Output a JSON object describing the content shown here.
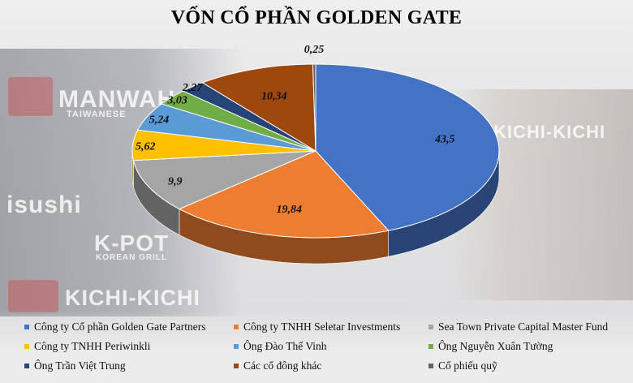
{
  "chart_data": {
    "type": "pie",
    "title": "VỐN CỔ PHẦN GOLDEN GATE",
    "legend_position": "bottom",
    "slices": [
      {
        "label": "Công ty Cổ phần Golden Gate Partners",
        "value": 43.5,
        "display": "43,5",
        "color": "#4472c4"
      },
      {
        "label": "Công ty TNHH Seletar Investments",
        "value": 19.84,
        "display": "19,84",
        "color": "#ed7d31"
      },
      {
        "label": "Sea Town Private Capital Master Fund",
        "value": 9.9,
        "display": "9,9",
        "color": "#a5a5a5"
      },
      {
        "label": "Công ty TNHH Periwinkli",
        "value": 5.62,
        "display": "5,62",
        "color": "#ffc000"
      },
      {
        "label": "Ông Đào Thế Vinh",
        "value": 5.24,
        "display": "5,24",
        "color": "#5b9bd5"
      },
      {
        "label": "Ông Nguyễn Xuân Tường",
        "value": 3.03,
        "display": "3,03",
        "color": "#70ad47"
      },
      {
        "label": "Ông Trần Việt Trung",
        "value": 2.27,
        "display": "2,27",
        "color": "#264478"
      },
      {
        "label": "Các cổ đông khác",
        "value": 10.34,
        "display": "10,34",
        "color": "#9e480e"
      },
      {
        "label": "Cổ phiếu quỹ",
        "value": 0.25,
        "display": "0,25",
        "color": "#636363"
      }
    ]
  },
  "background": {
    "signs": [
      "MANWAH",
      "TAIWANESE",
      "KICHI-KICHI",
      "isushi",
      "K-POT",
      "KOREAN GRILL",
      "KICHI-KICHI"
    ]
  }
}
